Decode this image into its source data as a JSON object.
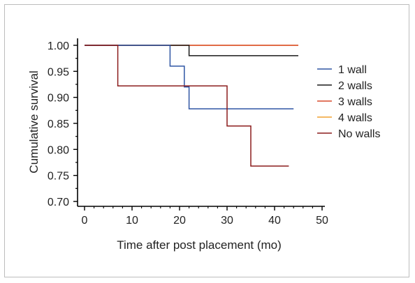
{
  "chart_data": {
    "type": "line",
    "step": true,
    "title": "",
    "xlabel": "Time after post placement (mo)",
    "ylabel": "Cumulative survival",
    "xlim": [
      0,
      50
    ],
    "ylim": [
      0.7,
      1.0
    ],
    "xticks": [
      0,
      10,
      20,
      30,
      40,
      50
    ],
    "yticks": [
      0.7,
      0.75,
      0.8,
      0.85,
      0.9,
      0.95,
      1.0
    ],
    "ytick_labels": [
      "0.70",
      "0.75",
      "0.80",
      "0.85",
      "0.90",
      "0.95",
      "1.00"
    ],
    "grid": false,
    "legend_position": "right",
    "series": [
      {
        "name": "1 wall",
        "color": "#2f55a4",
        "points": [
          [
            0,
            1.0
          ],
          [
            18,
            1.0
          ],
          [
            18,
            0.96
          ],
          [
            21,
            0.96
          ],
          [
            21,
            0.92
          ],
          [
            22,
            0.92
          ],
          [
            22,
            0.878
          ],
          [
            44,
            0.878
          ]
        ]
      },
      {
        "name": "2 walls",
        "color": "#1a1a1a",
        "points": [
          [
            0,
            1.0
          ],
          [
            22,
            1.0
          ],
          [
            22,
            0.98
          ],
          [
            45,
            0.98
          ]
        ]
      },
      {
        "name": "3 walls",
        "color": "#d94a2b",
        "points": [
          [
            0,
            1.0
          ],
          [
            45,
            1.0
          ]
        ]
      },
      {
        "name": "4 walls",
        "color": "#f0a030",
        "points": [
          [
            0,
            1.0
          ],
          [
            45,
            1.0
          ]
        ]
      },
      {
        "name": "No walls",
        "color": "#8b1c1c",
        "points": [
          [
            0,
            1.0
          ],
          [
            7,
            1.0
          ],
          [
            7,
            0.922
          ],
          [
            30,
            0.922
          ],
          [
            30,
            0.845
          ],
          [
            35,
            0.845
          ],
          [
            35,
            0.768
          ],
          [
            43,
            0.768
          ]
        ]
      }
    ]
  }
}
